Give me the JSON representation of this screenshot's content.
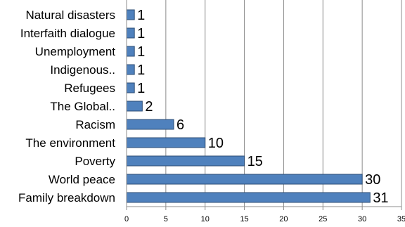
{
  "chart_data": {
    "type": "bar",
    "orientation": "horizontal",
    "title": "",
    "xlabel": "",
    "ylabel": "",
    "categories": [
      "Natural disasters",
      "Interfaith dialogue",
      "Unemployment",
      "Indigenous..",
      "Refugees",
      "The Global..",
      "Racism",
      "The environment",
      "Poverty",
      "World peace",
      "Family breakdown"
    ],
    "values": [
      1,
      1,
      1,
      1,
      1,
      2,
      6,
      10,
      15,
      30,
      31
    ],
    "xlim": [
      0,
      35
    ],
    "xticks": [
      0,
      5,
      10,
      15,
      20,
      25,
      30,
      35
    ],
    "grid": "vertical",
    "legend": "none",
    "data_labels": true,
    "bar_color": "#4f81bd",
    "bar_edge_color": "#2c4d75"
  }
}
